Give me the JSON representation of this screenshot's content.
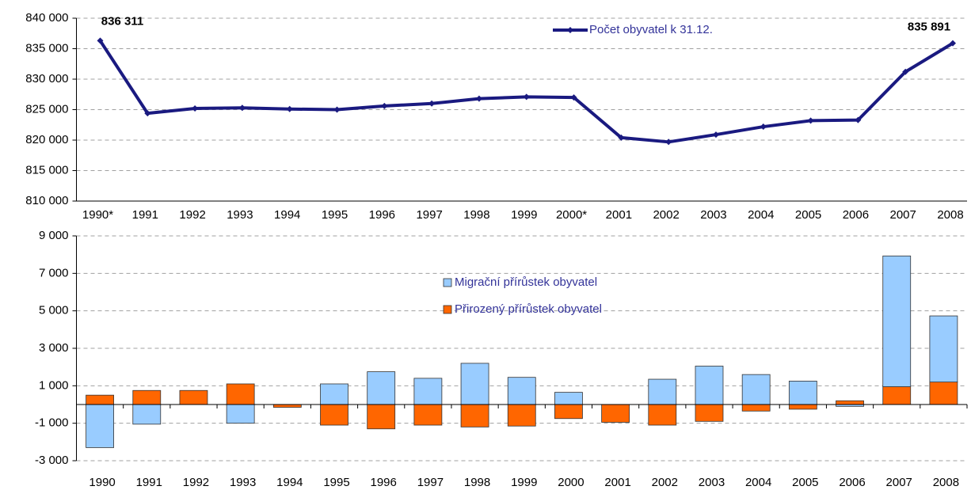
{
  "chart_data": [
    {
      "type": "line",
      "categories": [
        "1990*",
        "1991",
        "1992",
        "1993",
        "1994",
        "1995",
        "1996",
        "1997",
        "1998",
        "1999",
        "2000*",
        "2001",
        "2002",
        "2003",
        "2004",
        "2005",
        "2006",
        "2007",
        "2008"
      ],
      "series": [
        {
          "name": "Počet obyvatel k 31.12.",
          "color": "#1a1a80",
          "values": [
            836311,
            824400,
            825200,
            825300,
            825100,
            825000,
            825600,
            826000,
            826800,
            827100,
            827000,
            820400,
            819700,
            820900,
            822200,
            823200,
            823300,
            831200,
            835891
          ],
          "value_labels": [
            "836 311",
            null,
            null,
            null,
            null,
            null,
            null,
            null,
            null,
            null,
            null,
            null,
            null,
            null,
            null,
            null,
            null,
            null,
            "835 891"
          ]
        }
      ],
      "ylim": [
        810000,
        840000
      ],
      "yticks": [
        {
          "value": 810000,
          "label": "810 000"
        },
        {
          "value": 815000,
          "label": "815 000"
        },
        {
          "value": 820000,
          "label": "820 000"
        },
        {
          "value": 825000,
          "label": "825 000"
        },
        {
          "value": 830000,
          "label": "830 000"
        },
        {
          "value": 835000,
          "label": "835 000"
        },
        {
          "value": 840000,
          "label": "840 000"
        }
      ],
      "grid": true,
      "legend": "top-right"
    },
    {
      "type": "bar",
      "stacked": true,
      "categories": [
        "1990",
        "1991",
        "1992",
        "1993",
        "1994",
        "1995",
        "1996",
        "1997",
        "1998",
        "1999",
        "2000",
        "2001",
        "2002",
        "2003",
        "2004",
        "2005",
        "2006",
        "2007",
        "2008"
      ],
      "series": [
        {
          "name": "Přirozený přírůstek obyvatel",
          "color": "#ff6600",
          "values": [
            500,
            750,
            750,
            1100,
            -150,
            -1100,
            -1300,
            -1100,
            -1200,
            -1150,
            -750,
            -950,
            -1100,
            -900,
            -350,
            -250,
            200,
            950,
            1200
          ]
        },
        {
          "name": "Migrační přírůstek obyvatel",
          "color": "#99ccff",
          "values": [
            -2300,
            -1050,
            0,
            -1000,
            0,
            1100,
            1750,
            1400,
            2200,
            1450,
            650,
            0,
            1350,
            2050,
            1600,
            1250,
            -100,
            6980,
            3530
          ]
        }
      ],
      "ylim": [
        -3000,
        9000
      ],
      "yticks": [
        {
          "value": -3000,
          "label": "-3 000"
        },
        {
          "value": -1000,
          "label": "-1 000"
        },
        {
          "value": 1000,
          "label": "1 000"
        },
        {
          "value": 3000,
          "label": "3 000"
        },
        {
          "value": 5000,
          "label": "5 000"
        },
        {
          "value": 7000,
          "label": "7 000"
        },
        {
          "value": 9000,
          "label": "9 000"
        }
      ],
      "grid": true,
      "legend": "center"
    }
  ]
}
